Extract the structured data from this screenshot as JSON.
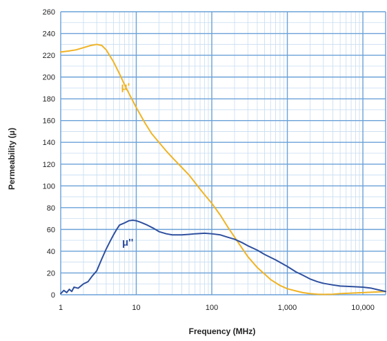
{
  "chart_data": {
    "type": "line",
    "title": "",
    "xlabel": "Frequency (MHz)",
    "ylabel": "Permeability (μ)",
    "xscale": "log",
    "xlim": [
      1,
      20000
    ],
    "ylim": [
      0,
      260
    ],
    "x_ticks": [
      1,
      10,
      100,
      1000,
      10000
    ],
    "x_tick_labels": [
      "1",
      "10",
      "100",
      "1,000",
      "10,000"
    ],
    "y_ticks": [
      0,
      20,
      40,
      60,
      80,
      100,
      120,
      140,
      160,
      180,
      200,
      220,
      240,
      260
    ],
    "y_tick_labels": [
      "0",
      "20",
      "40",
      "60",
      "80",
      "100",
      "120",
      "140",
      "160",
      "180",
      "200",
      "220",
      "240",
      "260"
    ],
    "grid": true,
    "colors": {
      "grid_major": "#6aa0d8",
      "grid_minor": "#c7dcf1",
      "mu_prime": "#f0b323",
      "mu_double_prime": "#2e4f9e"
    },
    "series": [
      {
        "name": "μ'",
        "color": "#f0b323",
        "label_at": [
          6.3,
          188
        ],
        "x": [
          1,
          1.3,
          1.6,
          2,
          2.5,
          3,
          3.5,
          4,
          5,
          6,
          7,
          8,
          10,
          13,
          16,
          20,
          25,
          30,
          40,
          50,
          60,
          70,
          80,
          100,
          130,
          160,
          200,
          250,
          300,
          400,
          500,
          600,
          700,
          800,
          1000,
          1300,
          1600,
          2000,
          2500,
          3000,
          4000,
          5000,
          7000,
          10000,
          15000,
          20000
        ],
        "y": [
          223,
          224,
          225,
          227,
          229,
          230,
          229,
          225,
          214,
          203,
          193,
          185,
          172,
          158,
          148,
          140,
          132,
          126,
          117,
          110,
          103,
          97,
          92,
          84,
          73,
          63,
          53,
          43,
          35,
          25,
          19,
          14,
          11,
          8.5,
          5.5,
          3.5,
          2,
          1,
          0.5,
          0.3,
          0.5,
          1,
          1.5,
          2,
          2.5,
          3
        ]
      },
      {
        "name": "μ''",
        "color": "#2e4f9e",
        "label_at": [
          6.5,
          45
        ],
        "x": [
          1,
          1.1,
          1.2,
          1.3,
          1.4,
          1.5,
          1.7,
          2,
          2.3,
          2.6,
          3,
          3.5,
          4,
          4.5,
          5,
          5.5,
          6,
          7,
          8,
          9,
          10,
          11,
          12,
          14,
          17,
          20,
          25,
          30,
          35,
          40,
          50,
          60,
          80,
          100,
          130,
          160,
          200,
          250,
          300,
          400,
          500,
          700,
          1000,
          1300,
          1600,
          2000,
          2500,
          3000,
          4000,
          5000,
          7000,
          10000,
          13000,
          16000,
          20000
        ],
        "y": [
          1,
          4,
          2,
          5,
          3,
          7,
          6,
          10,
          12,
          17,
          22,
          33,
          42,
          49,
          55,
          60,
          64,
          66,
          68,
          68.5,
          68,
          67,
          66,
          64,
          61,
          58,
          56,
          55,
          55,
          55,
          55.5,
          56,
          56.5,
          56,
          55,
          53,
          51,
          48,
          45,
          41,
          37,
          32,
          26,
          21,
          18,
          14.5,
          12,
          10.5,
          9,
          8,
          7.5,
          7,
          6,
          4.5,
          3
        ]
      }
    ]
  }
}
